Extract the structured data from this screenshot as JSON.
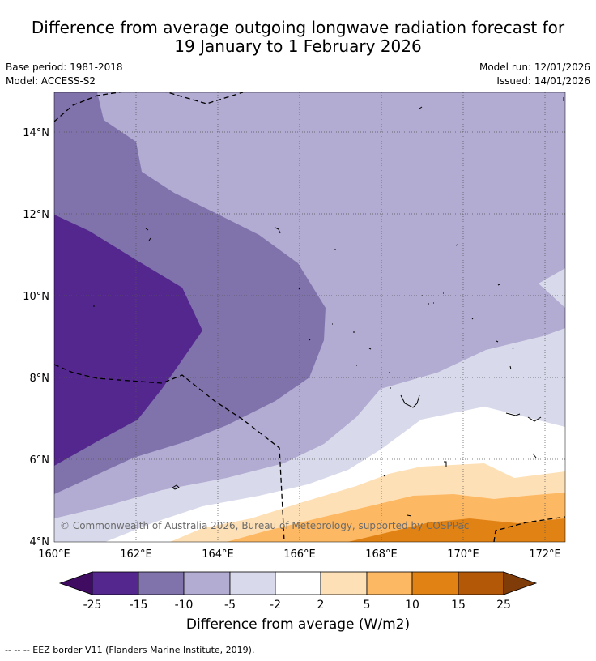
{
  "title_line1": "Difference from average outgoing longwave radiation forecast for",
  "title_line2": "19 January to 1 February 2026",
  "base_period": "Base period: 1981-2018",
  "model": "Model: ACCESS-S2",
  "model_run": "Model run: 12/01/2026",
  "issued": "Issued: 14/01/2026",
  "map": {
    "lat_labels": [
      "14°N",
      "12°N",
      "10°N",
      "8°N",
      "6°N",
      "4°N"
    ],
    "lon_labels": [
      "160°E",
      "162°E",
      "164°E",
      "166°E",
      "168°E",
      "170°E",
      "172°E"
    ],
    "copyright": "© Commonwealth of Australia 2026, Bureau of Meteorology, supported by COSPPac"
  },
  "colorbar": {
    "ticks": [
      "-25",
      "-15",
      "-10",
      "-5",
      "-2",
      "2",
      "5",
      "10",
      "15",
      "25"
    ],
    "colors": {
      "lt_minus25": "#3f0c61",
      "m25_m15": "#54278f",
      "m15_m10": "#8073ac",
      "m10_m5": "#b2abd2",
      "m5_m2": "#d8daeb",
      "m2_2": "#ffffff",
      "p2_5": "#fee0b6",
      "p5_10": "#fdb863",
      "p10_15": "#e08214",
      "p15_25": "#b35806",
      "gt_25": "#7f3b08"
    },
    "title": "Difference from average (W/m2)"
  },
  "legend_text": "--  --  -- EEZ border V11 (Flanders Marine Institute, 2019)."
}
